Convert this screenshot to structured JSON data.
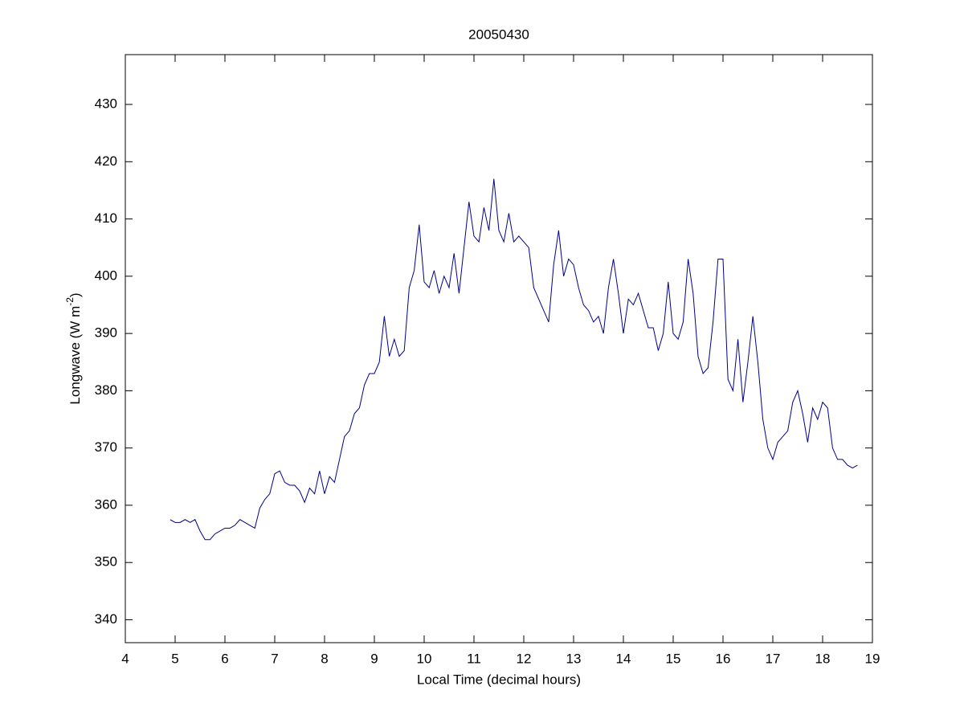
{
  "chart_data": {
    "type": "line",
    "title": "20050430",
    "x_label": "Local Time (decimal hours)",
    "y_label": {
      "text": "Longwave (W m",
      "superscript": "-2",
      "close": ")"
    },
    "xlim": [
      4,
      19
    ],
    "xticks": [
      4,
      5,
      6,
      7,
      8,
      9,
      10,
      11,
      12,
      13,
      14,
      15,
      16,
      17,
      18,
      19
    ],
    "ylim": [
      336,
      438.7
    ],
    "yticks": [
      340,
      350,
      360,
      370,
      380,
      390,
      400,
      410,
      420,
      430
    ],
    "series": [
      {
        "color": "#00008b",
        "x": [
          4.9,
          5.0,
          5.1,
          5.2,
          5.3,
          5.4,
          5.5,
          5.6,
          5.7,
          5.8,
          5.9,
          6.0,
          6.1,
          6.2,
          6.3,
          6.4,
          6.5,
          6.6,
          6.7,
          6.8,
          6.9,
          7.0,
          7.1,
          7.2,
          7.3,
          7.4,
          7.5,
          7.6,
          7.7,
          7.8,
          7.9,
          8.0,
          8.1,
          8.2,
          8.3,
          8.4,
          8.5,
          8.6,
          8.7,
          8.8,
          8.9,
          9.0,
          9.1,
          9.2,
          9.3,
          9.4,
          9.5,
          9.6,
          9.7,
          9.8,
          9.9,
          10.0,
          10.1,
          10.2,
          10.3,
          10.4,
          10.5,
          10.6,
          10.7,
          10.8,
          10.9,
          11.0,
          11.1,
          11.2,
          11.3,
          11.4,
          11.5,
          11.6,
          11.7,
          11.8,
          11.9,
          12.0,
          12.1,
          12.2,
          12.3,
          12.4,
          12.5,
          12.6,
          12.7,
          12.8,
          12.9,
          13.0,
          13.1,
          13.2,
          13.3,
          13.4,
          13.5,
          13.6,
          13.7,
          13.8,
          13.9,
          14.0,
          14.1,
          14.2,
          14.3,
          14.4,
          14.5,
          14.6,
          14.7,
          14.8,
          14.9,
          15.0,
          15.1,
          15.2,
          15.3,
          15.4,
          15.5,
          15.6,
          15.7,
          15.8,
          15.9,
          16.0,
          16.1,
          16.2,
          16.3,
          16.4,
          16.5,
          16.6,
          16.7,
          16.8,
          16.9,
          17.0,
          17.1,
          17.2,
          17.3,
          17.4,
          17.5,
          17.6,
          17.7,
          17.8,
          17.9,
          18.0,
          18.1,
          18.2,
          18.3,
          18.4,
          18.5,
          18.6,
          18.7
        ],
        "values": [
          357.5,
          357,
          357,
          357.5,
          357,
          357.5,
          355.5,
          354,
          354,
          355,
          355.5,
          356,
          356,
          356.5,
          357.5,
          357,
          356.5,
          356,
          359.5,
          361,
          362,
          365.5,
          366,
          364,
          363.5,
          363.5,
          362.5,
          360.5,
          363,
          362,
          366,
          362,
          365,
          364,
          368,
          372,
          373,
          376,
          377,
          381,
          383,
          383,
          385,
          393,
          386,
          389,
          386,
          387,
          398,
          401,
          409,
          399,
          398,
          401,
          397,
          400,
          398,
          404,
          397,
          405,
          413,
          407,
          406,
          412,
          408,
          417,
          408,
          406,
          411,
          406,
          407,
          406,
          405,
          398,
          396,
          394,
          392,
          402,
          408,
          400,
          403,
          402,
          398,
          395,
          394,
          392,
          393,
          390,
          398,
          403,
          397,
          390,
          396,
          395,
          397,
          394,
          391,
          391,
          387,
          390,
          399,
          390,
          389,
          392,
          403,
          397,
          386,
          383,
          384,
          392,
          403,
          403,
          382,
          380,
          389,
          378,
          385,
          393,
          385,
          375,
          370,
          368,
          371,
          372,
          373,
          378,
          380,
          376,
          371,
          377,
          375,
          378,
          377,
          370,
          368,
          368,
          367,
          366.5,
          367
        ]
      }
    ]
  }
}
